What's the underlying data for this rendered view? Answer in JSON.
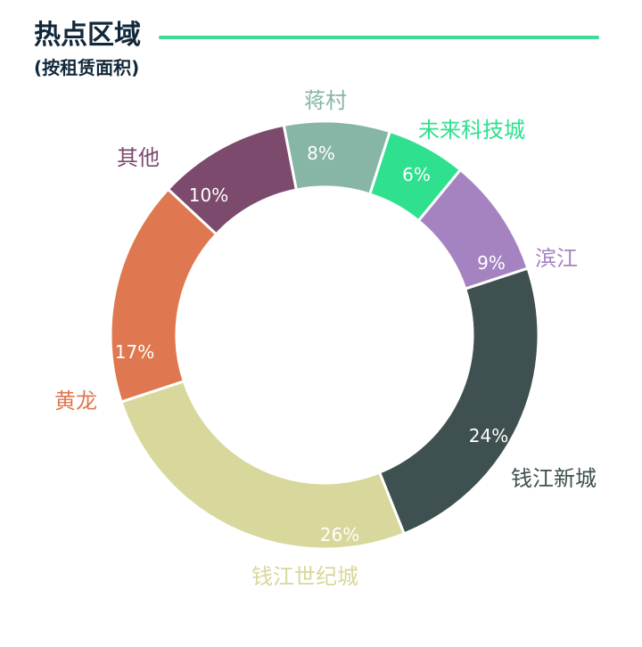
{
  "chart_data": {
    "type": "pie",
    "donut": true,
    "title": "热点区域",
    "subtitle": "(按租赁面积)",
    "categories": [
      "蒋村",
      "未来科技城",
      "滨江",
      "钱江新城",
      "钱江世纪城",
      "黄龙",
      "其他"
    ],
    "values": [
      8,
      6,
      9,
      24,
      26,
      17,
      10
    ],
    "data_labels": [
      "8%",
      "6%",
      "9%",
      "24%",
      "26%",
      "17%",
      "10%"
    ],
    "colors": [
      "#87b5a6",
      "#2fe08e",
      "#a583c1",
      "#3e504f",
      "#d8d79c",
      "#df7850",
      "#7b4a6d"
    ]
  },
  "header": {
    "title_color": "#12283a",
    "accent_color": "#3ddc97"
  }
}
